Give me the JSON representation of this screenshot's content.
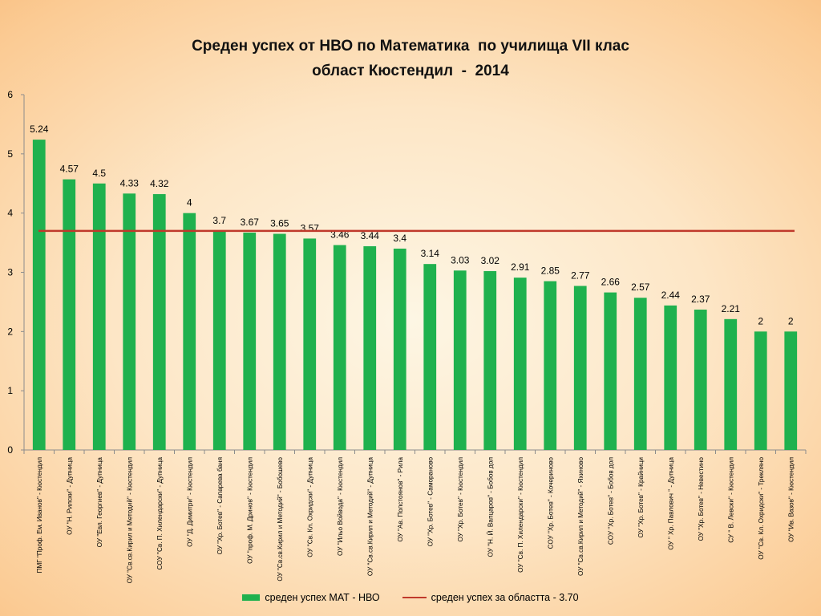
{
  "chart_data": {
    "type": "bar",
    "title": [
      "Среден успех от НВО по Математика  по училища VII клас",
      "област Кюстендил  -  2014"
    ],
    "ylim": [
      0,
      6
    ],
    "yticks": [
      0,
      1,
      2,
      3,
      4,
      5,
      6
    ],
    "categories": [
      "ПМГ \"Проф. Ем. Иванов\" - Кюстендил",
      "ОУ \"Н. Рилски\" - Дупница",
      "ОУ \"Евл. Георгиев\" - Дупница",
      "ОУ \"Св.св.Кирил и Методий\" - Кюстендил",
      "СОУ \"Св. П. Хилендарски\" - Дупница",
      "ОУ \"Д. Димитри\" - Кюстендил",
      "ОУ \"Хр. Ботев\" - Сапарева баня",
      "ОУ \"проф. М. Дринов\" - Кюстендил",
      "ОУ \"Св.св.Кирил и Методий\" - Бобошево",
      "ОУ \"Св. Кл. Охридски\" - Дупница",
      "ОУ \"Ильо Войвода\" - Кюстендил",
      "ОУ \"Св.св.Кирил и Методий\" - Дупница",
      "ОУ \"Ав. Попстоянов\" - Рила",
      "ОУ \"Хр. Ботев\" - Самораново",
      "ОУ \"Хр. Ботев\" - Кюстендил",
      "ОУ \"Н. Й. Вапцаров\" - Бобов дол",
      "ОУ \"Св. П. Хилендарски\" - Кюстендил",
      "СОУ \"Хр. Ботев\" - Кочериново",
      "ОУ \"Св.св.Кирил и Методий\" - Яхиново",
      "СОУ \"Хр. Ботев\" - Бобов дол",
      "ОУ \"Хр. Ботев\" - Крайници",
      "ОУ \" Хр. Павлович \" - Дупница",
      "ОУ \"Хр. Ботев\" - Невестино",
      "СУ \" В. Левски\" - Кюстендил",
      "ОУ \"Св. Кл. Охридски\" - Трекляно",
      "ОУ \"Ив. Вазов\" - Кюстендил"
    ],
    "series": [
      {
        "name": "среден успех МАТ - НВО",
        "color": "#1fb14e",
        "values": [
          5.24,
          4.57,
          4.5,
          4.33,
          4.32,
          4,
          3.7,
          3.67,
          3.65,
          3.57,
          3.46,
          3.44,
          3.4,
          3.14,
          3.03,
          3.02,
          2.91,
          2.85,
          2.77,
          2.66,
          2.57,
          2.44,
          2.37,
          2.21,
          2,
          2
        ],
        "labels": [
          "5.24",
          "4.57",
          "4.5",
          "4.33",
          "4.32",
          "4",
          "3.7",
          "3.67",
          "3.65",
          "3.57",
          "3.46",
          "3.44",
          "3.4",
          "3.14",
          "3.03",
          "3.02",
          "2.91",
          "2.85",
          "2.77",
          "2.66",
          "2.57",
          "2.44",
          "2.37",
          "2.21",
          "2",
          "2"
        ]
      }
    ],
    "reference_line": {
      "name": "среден успех за областта - 3.70",
      "value": 3.7,
      "color": "#c0392b"
    },
    "legend_position": "bottom",
    "grid": false
  }
}
